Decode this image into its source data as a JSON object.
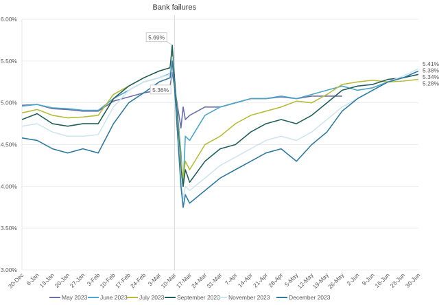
{
  "chart_data": {
    "type": "line",
    "title": "",
    "annotation": "Bank failures",
    "annotation_date": "2023-03-10",
    "xlabel": "",
    "ylabel": "",
    "ylim": [
      3.0,
      6.0
    ],
    "y_ticks": [
      "3.00%",
      "3.50%",
      "4.00%",
      "4.50%",
      "5.00%",
      "5.50%",
      "6.00%"
    ],
    "y_tick_values": [
      3.0,
      3.5,
      4.0,
      4.5,
      5.0,
      5.5,
      6.0
    ],
    "xlim": [
      "2022-12-30",
      "2023-06-30"
    ],
    "x_ticks": [
      "30-Dec",
      "6-Jan",
      "13-Jan",
      "20-Jan",
      "27-Jan",
      "3-Feb",
      "10-Feb",
      "17-Feb",
      "24-Feb",
      "3-Mar",
      "10-Mar",
      "17-Mar",
      "24-Mar",
      "31-Mar",
      "7-Apr",
      "14-Apr",
      "21-Apr",
      "28-Apr",
      "5-May",
      "12-May",
      "19-May",
      "26-May",
      "2-Jun",
      "9-Jun",
      "16-Jun",
      "23-Jun",
      "30-Jun"
    ],
    "grid": "horizontal",
    "legend": "bottom",
    "x": [
      "2022-12-30",
      "2023-01-06",
      "2023-01-13",
      "2023-01-20",
      "2023-01-27",
      "2023-02-03",
      "2023-02-10",
      "2023-02-17",
      "2023-02-24",
      "2023-03-03",
      "2023-03-08",
      "2023-03-09",
      "2023-03-10",
      "2023-03-13",
      "2023-03-14",
      "2023-03-15",
      "2023-03-17",
      "2023-03-24",
      "2023-03-31",
      "2023-04-07",
      "2023-04-14",
      "2023-04-21",
      "2023-04-28",
      "2023-05-05",
      "2023-05-12",
      "2023-05-19",
      "2023-05-26",
      "2023-06-02",
      "2023-06-09",
      "2023-06-16",
      "2023-06-23",
      "2023-06-30"
    ],
    "series": [
      {
        "name": "May 2023",
        "color": "#6a6ea6",
        "values": [
          4.97,
          4.98,
          4.93,
          4.92,
          4.9,
          4.9,
          5.02,
          5.07,
          5.12,
          5.15,
          5.2,
          5.36,
          5.2,
          4.7,
          4.95,
          4.8,
          4.85,
          4.95,
          4.95,
          5.0,
          5.05,
          5.05,
          5.07,
          5.05,
          5.08,
          5.08,
          5.08,
          null,
          null,
          null,
          null,
          null
        ]
      },
      {
        "name": "June 2023",
        "color": "#4ba4c9",
        "values": [
          4.96,
          4.98,
          4.94,
          4.93,
          4.91,
          4.91,
          5.05,
          5.15,
          5.25,
          5.3,
          5.35,
          5.56,
          5.3,
          4.4,
          4.0,
          4.6,
          4.55,
          4.85,
          4.95,
          5.0,
          5.05,
          5.05,
          5.08,
          5.05,
          5.1,
          5.15,
          5.2,
          5.15,
          5.18,
          5.25,
          null,
          null
        ]
      },
      {
        "name": "July 2023",
        "color": "#b7bd3b",
        "values": [
          4.88,
          4.92,
          4.85,
          4.82,
          4.83,
          4.85,
          5.1,
          5.2,
          5.3,
          5.38,
          5.42,
          5.65,
          5.3,
          4.3,
          4.1,
          4.3,
          4.2,
          4.5,
          4.6,
          4.75,
          4.85,
          4.9,
          4.95,
          5.02,
          5.0,
          5.1,
          5.22,
          5.25,
          5.27,
          5.25,
          5.26,
          5.28
        ]
      },
      {
        "name": "September 2023",
        "color": "#1f5f5b",
        "values": [
          4.8,
          4.87,
          4.75,
          4.72,
          4.75,
          4.75,
          5.05,
          5.2,
          5.3,
          5.38,
          5.42,
          5.69,
          5.3,
          4.2,
          4.0,
          4.2,
          4.05,
          4.3,
          4.45,
          4.5,
          4.65,
          4.75,
          4.8,
          4.75,
          4.85,
          5.0,
          5.15,
          5.2,
          5.22,
          5.28,
          5.3,
          5.34
        ]
      },
      {
        "name": "November 2023",
        "color": "#cfe5ee",
        "values": [
          4.72,
          4.75,
          4.65,
          4.6,
          4.6,
          4.62,
          4.95,
          5.15,
          5.25,
          5.3,
          5.34,
          5.55,
          5.2,
          4.1,
          3.85,
          4.0,
          3.95,
          4.1,
          4.25,
          4.35,
          4.45,
          4.55,
          4.6,
          4.55,
          4.65,
          4.8,
          4.95,
          5.05,
          5.15,
          5.25,
          5.32,
          5.41
        ]
      },
      {
        "name": "December 2023",
        "color": "#2e7aa0",
        "values": [
          4.58,
          4.55,
          4.45,
          4.4,
          4.45,
          4.4,
          4.75,
          5.0,
          5.12,
          5.25,
          5.3,
          5.5,
          5.2,
          4.0,
          3.75,
          3.9,
          3.8,
          3.95,
          4.1,
          4.2,
          4.3,
          4.4,
          4.45,
          4.3,
          4.5,
          4.65,
          4.9,
          5.05,
          5.15,
          5.25,
          5.3,
          5.38
        ]
      }
    ],
    "callouts": [
      {
        "text": "5.69%",
        "series": "September 2023",
        "date": "2023-03-09",
        "value": 5.69
      },
      {
        "text": "5.36%",
        "series": "May 2023",
        "date": "2023-03-09",
        "value": 5.36
      }
    ],
    "end_labels": [
      "5.41%",
      "5.38%",
      "5.34%",
      "5.28%"
    ]
  }
}
